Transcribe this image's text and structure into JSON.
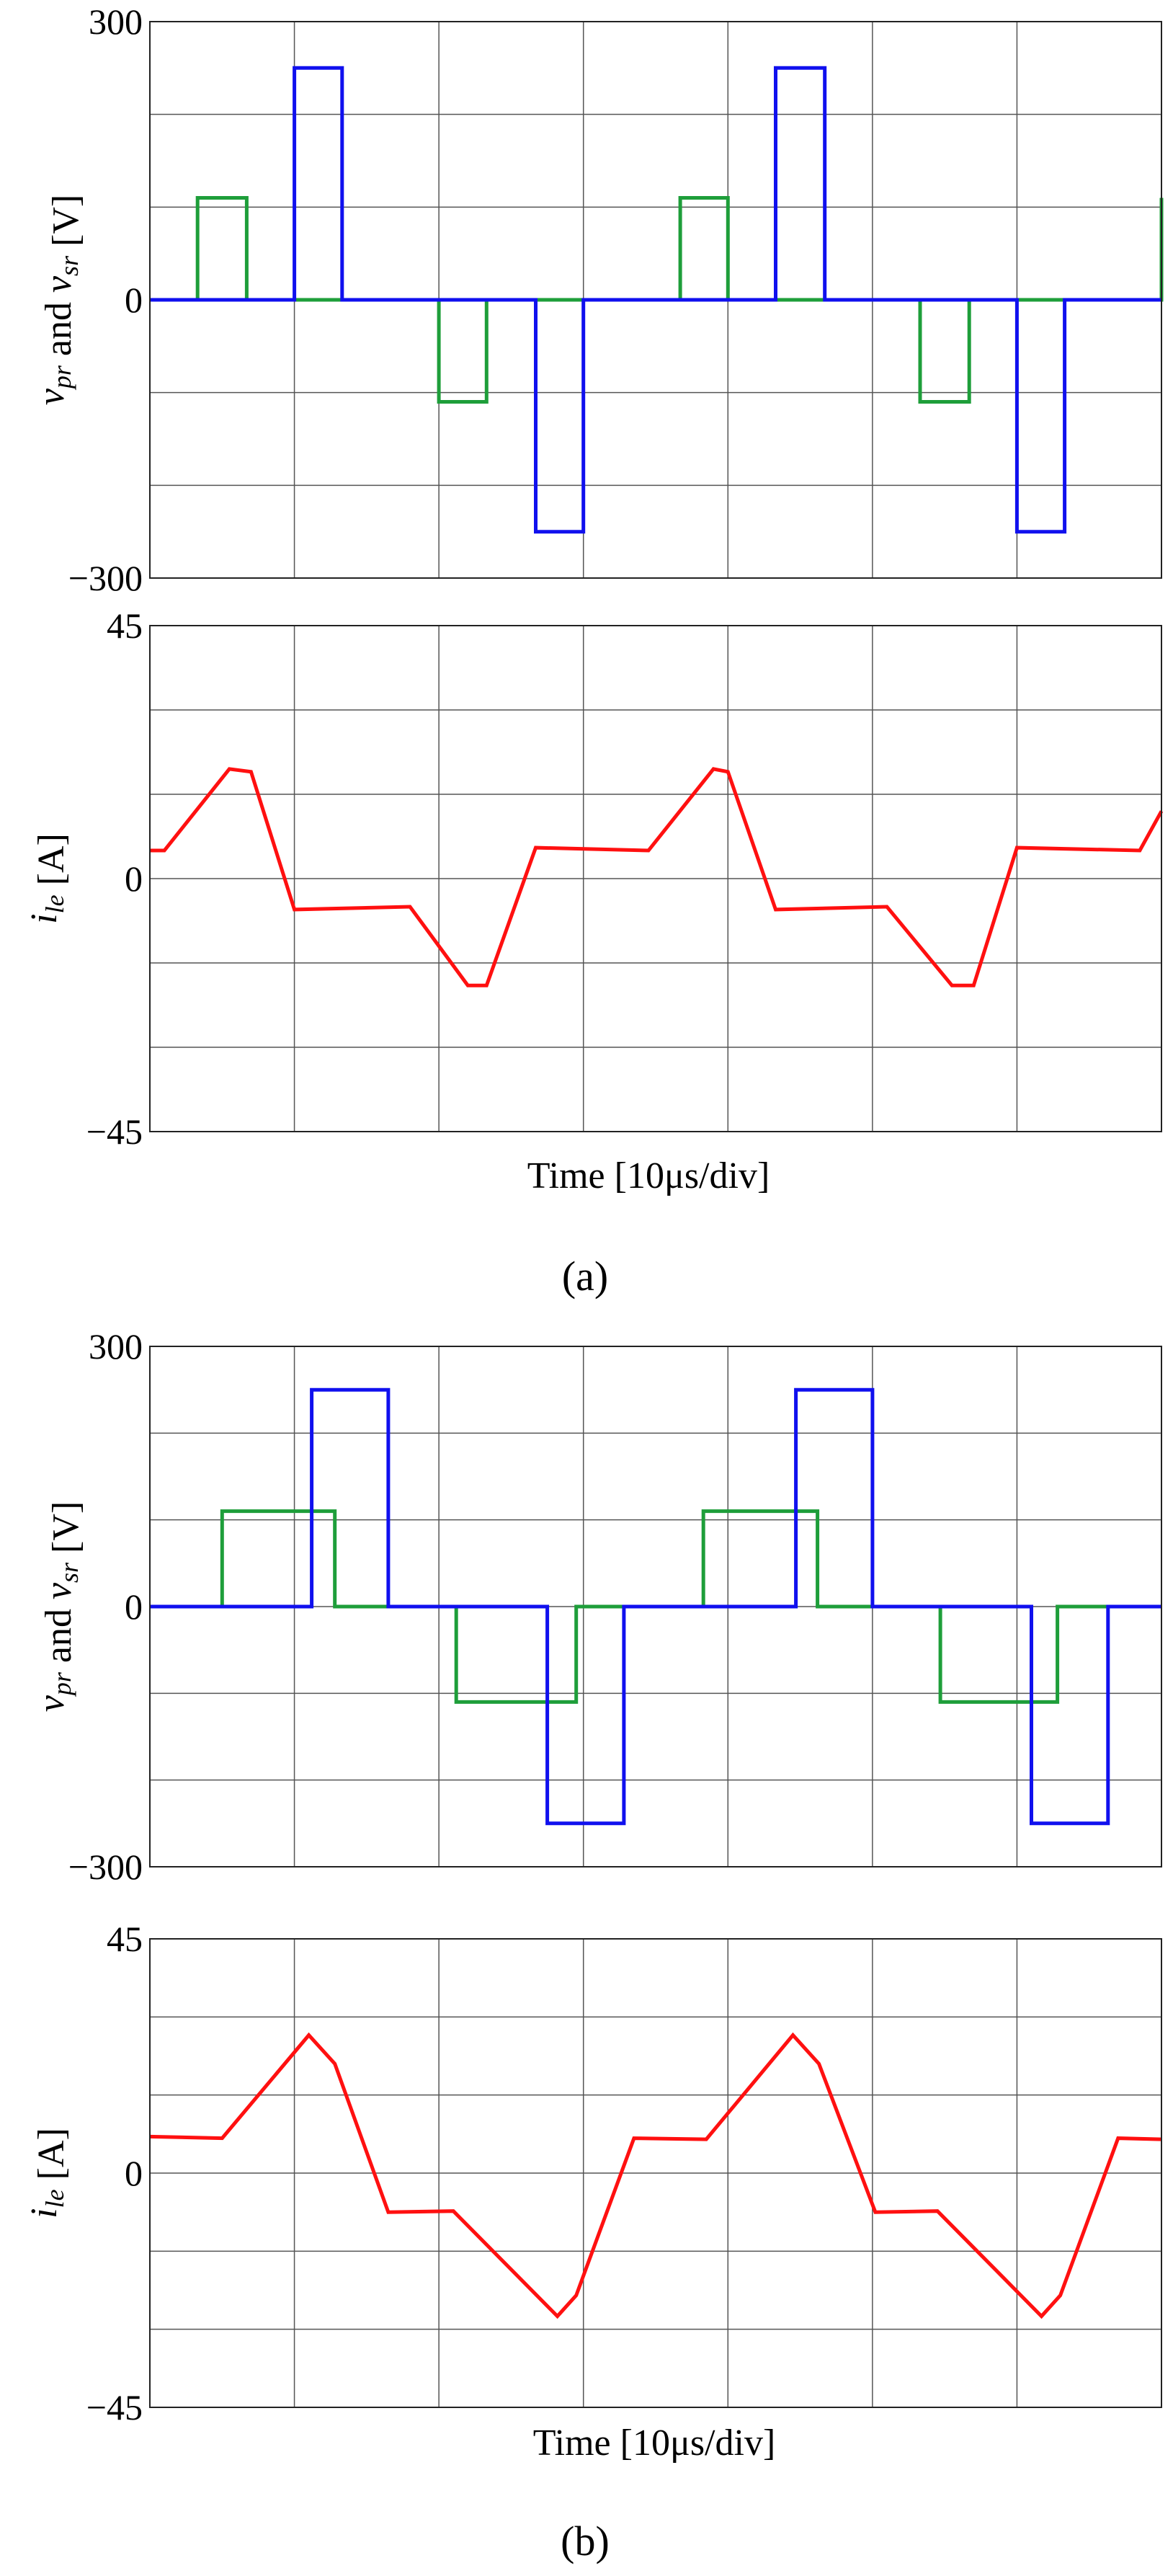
{
  "figure": {
    "panel_a_label": "(a)",
    "panel_b_label": "(b)",
    "voltage_ylabel": "v_pr and v_sr [V]",
    "current_ylabel": "i_le [A]",
    "xlabel": "Time [10μs/div]"
  },
  "colors": {
    "vpr": "#1e9e3a",
    "vsr": "#1010ee",
    "ile": "#ff1010",
    "grid": "#555555"
  },
  "chart_data": [
    {
      "id": "a-voltage",
      "type": "line",
      "title": "",
      "xlabel": "",
      "ylabel": "v_pr and v_sr [V]",
      "xlim": [
        0,
        70
      ],
      "ylim": [
        -300,
        300
      ],
      "yticks": [
        300,
        0,
        -300
      ],
      "ytick_labels": [
        "300",
        "0",
        "−300"
      ],
      "grid": true,
      "series": [
        {
          "name": "v_pr",
          "color": "#1e9e3a",
          "points": [
            [
              0,
              0
            ],
            [
              3.3,
              0
            ],
            [
              3.3,
              110
            ],
            [
              6.7,
              110
            ],
            [
              6.7,
              0
            ],
            [
              20,
              0
            ],
            [
              20,
              -110
            ],
            [
              23.3,
              -110
            ],
            [
              23.3,
              0
            ],
            [
              36.7,
              0
            ],
            [
              36.7,
              110
            ],
            [
              40,
              110
            ],
            [
              40,
              0
            ],
            [
              53.3,
              0
            ],
            [
              53.3,
              -110
            ],
            [
              56.7,
              -110
            ],
            [
              56.7,
              0
            ],
            [
              70,
              0
            ],
            [
              70,
              110
            ]
          ]
        },
        {
          "name": "v_sr",
          "color": "#1010ee",
          "points": [
            [
              0,
              0
            ],
            [
              10,
              0
            ],
            [
              10,
              250
            ],
            [
              13.3,
              250
            ],
            [
              13.3,
              0
            ],
            [
              26.7,
              0
            ],
            [
              26.7,
              -250
            ],
            [
              30,
              -250
            ],
            [
              30,
              0
            ],
            [
              43.3,
              0
            ],
            [
              43.3,
              250
            ],
            [
              46.7,
              250
            ],
            [
              46.7,
              0
            ],
            [
              60,
              0
            ],
            [
              60,
              -250
            ],
            [
              63.3,
              -250
            ],
            [
              63.3,
              0
            ],
            [
              70,
              0
            ]
          ]
        }
      ]
    },
    {
      "id": "a-current",
      "type": "line",
      "title": "",
      "xlabel": "Time [10μs/div]",
      "ylabel": "i_le [A]",
      "xlim": [
        0,
        70
      ],
      "ylim": [
        -45,
        45
      ],
      "yticks": [
        45,
        0,
        -45
      ],
      "ytick_labels": [
        "45",
        "0",
        "−45"
      ],
      "grid": true,
      "series": [
        {
          "name": "i_le",
          "color": "#ff1010",
          "points": [
            [
              0,
              5
            ],
            [
              1,
              5
            ],
            [
              5.5,
              19.5
            ],
            [
              7,
              19
            ],
            [
              10,
              -5.5
            ],
            [
              18,
              -5
            ],
            [
              22,
              -19
            ],
            [
              23.3,
              -19
            ],
            [
              26.7,
              5.5
            ],
            [
              34.5,
              5
            ],
            [
              39,
              19.5
            ],
            [
              40,
              19
            ],
            [
              43.3,
              -5.5
            ],
            [
              51,
              -5
            ],
            [
              55.5,
              -19
            ],
            [
              57,
              -19
            ],
            [
              60,
              5.5
            ],
            [
              68.5,
              5
            ],
            [
              70,
              12
            ]
          ]
        }
      ]
    },
    {
      "id": "b-voltage",
      "type": "line",
      "title": "",
      "xlabel": "",
      "ylabel": "v_pr and v_sr [V]",
      "xlim": [
        0,
        70
      ],
      "ylim": [
        -300,
        300
      ],
      "yticks": [
        300,
        0,
        -300
      ],
      "ytick_labels": [
        "300",
        "0",
        "−300"
      ],
      "grid": true,
      "series": [
        {
          "name": "v_pr",
          "color": "#1e9e3a",
          "points": [
            [
              0,
              0
            ],
            [
              5,
              0
            ],
            [
              5,
              110
            ],
            [
              12.8,
              110
            ],
            [
              12.8,
              0
            ],
            [
              21.2,
              0
            ],
            [
              21.2,
              -110
            ],
            [
              29.5,
              -110
            ],
            [
              29.5,
              0
            ],
            [
              38.3,
              0
            ],
            [
              38.3,
              110
            ],
            [
              46.2,
              110
            ],
            [
              46.2,
              0
            ],
            [
              54.7,
              0
            ],
            [
              54.7,
              -110
            ],
            [
              62.8,
              -110
            ],
            [
              62.8,
              0
            ],
            [
              70,
              0
            ]
          ]
        },
        {
          "name": "v_sr",
          "color": "#1010ee",
          "points": [
            [
              0,
              0
            ],
            [
              11.2,
              0
            ],
            [
              11.2,
              250
            ],
            [
              16.5,
              250
            ],
            [
              16.5,
              0
            ],
            [
              27.5,
              0
            ],
            [
              27.5,
              -250
            ],
            [
              32.8,
              -250
            ],
            [
              32.8,
              0
            ],
            [
              44.7,
              0
            ],
            [
              44.7,
              250
            ],
            [
              50,
              250
            ],
            [
              50,
              0
            ],
            [
              61,
              0
            ],
            [
              61,
              -250
            ],
            [
              66.3,
              -250
            ],
            [
              66.3,
              0
            ],
            [
              70,
              0
            ]
          ]
        }
      ]
    },
    {
      "id": "b-current",
      "type": "line",
      "title": "",
      "xlabel": "Time [10μs/div]",
      "ylabel": "i_le [A]",
      "xlim": [
        0,
        70
      ],
      "ylim": [
        -45,
        45
      ],
      "yticks": [
        45,
        0,
        -45
      ],
      "ytick_labels": [
        "45",
        "0",
        "−45"
      ],
      "grid": true,
      "series": [
        {
          "name": "i_le",
          "color": "#ff1010",
          "points": [
            [
              0,
              7
            ],
            [
              5,
              6.7
            ],
            [
              11,
              26.5
            ],
            [
              12.8,
              21
            ],
            [
              16.5,
              -7.5
            ],
            [
              21,
              -7.3
            ],
            [
              28.2,
              -27.5
            ],
            [
              29.5,
              -23.5
            ],
            [
              33.5,
              6.7
            ],
            [
              38.5,
              6.5
            ],
            [
              44.5,
              26.5
            ],
            [
              46.3,
              21
            ],
            [
              50.2,
              -7.5
            ],
            [
              54.5,
              -7.3
            ],
            [
              61.7,
              -27.5
            ],
            [
              63,
              -23.5
            ],
            [
              67,
              6.7
            ],
            [
              70,
              6.5
            ]
          ]
        }
      ]
    }
  ]
}
